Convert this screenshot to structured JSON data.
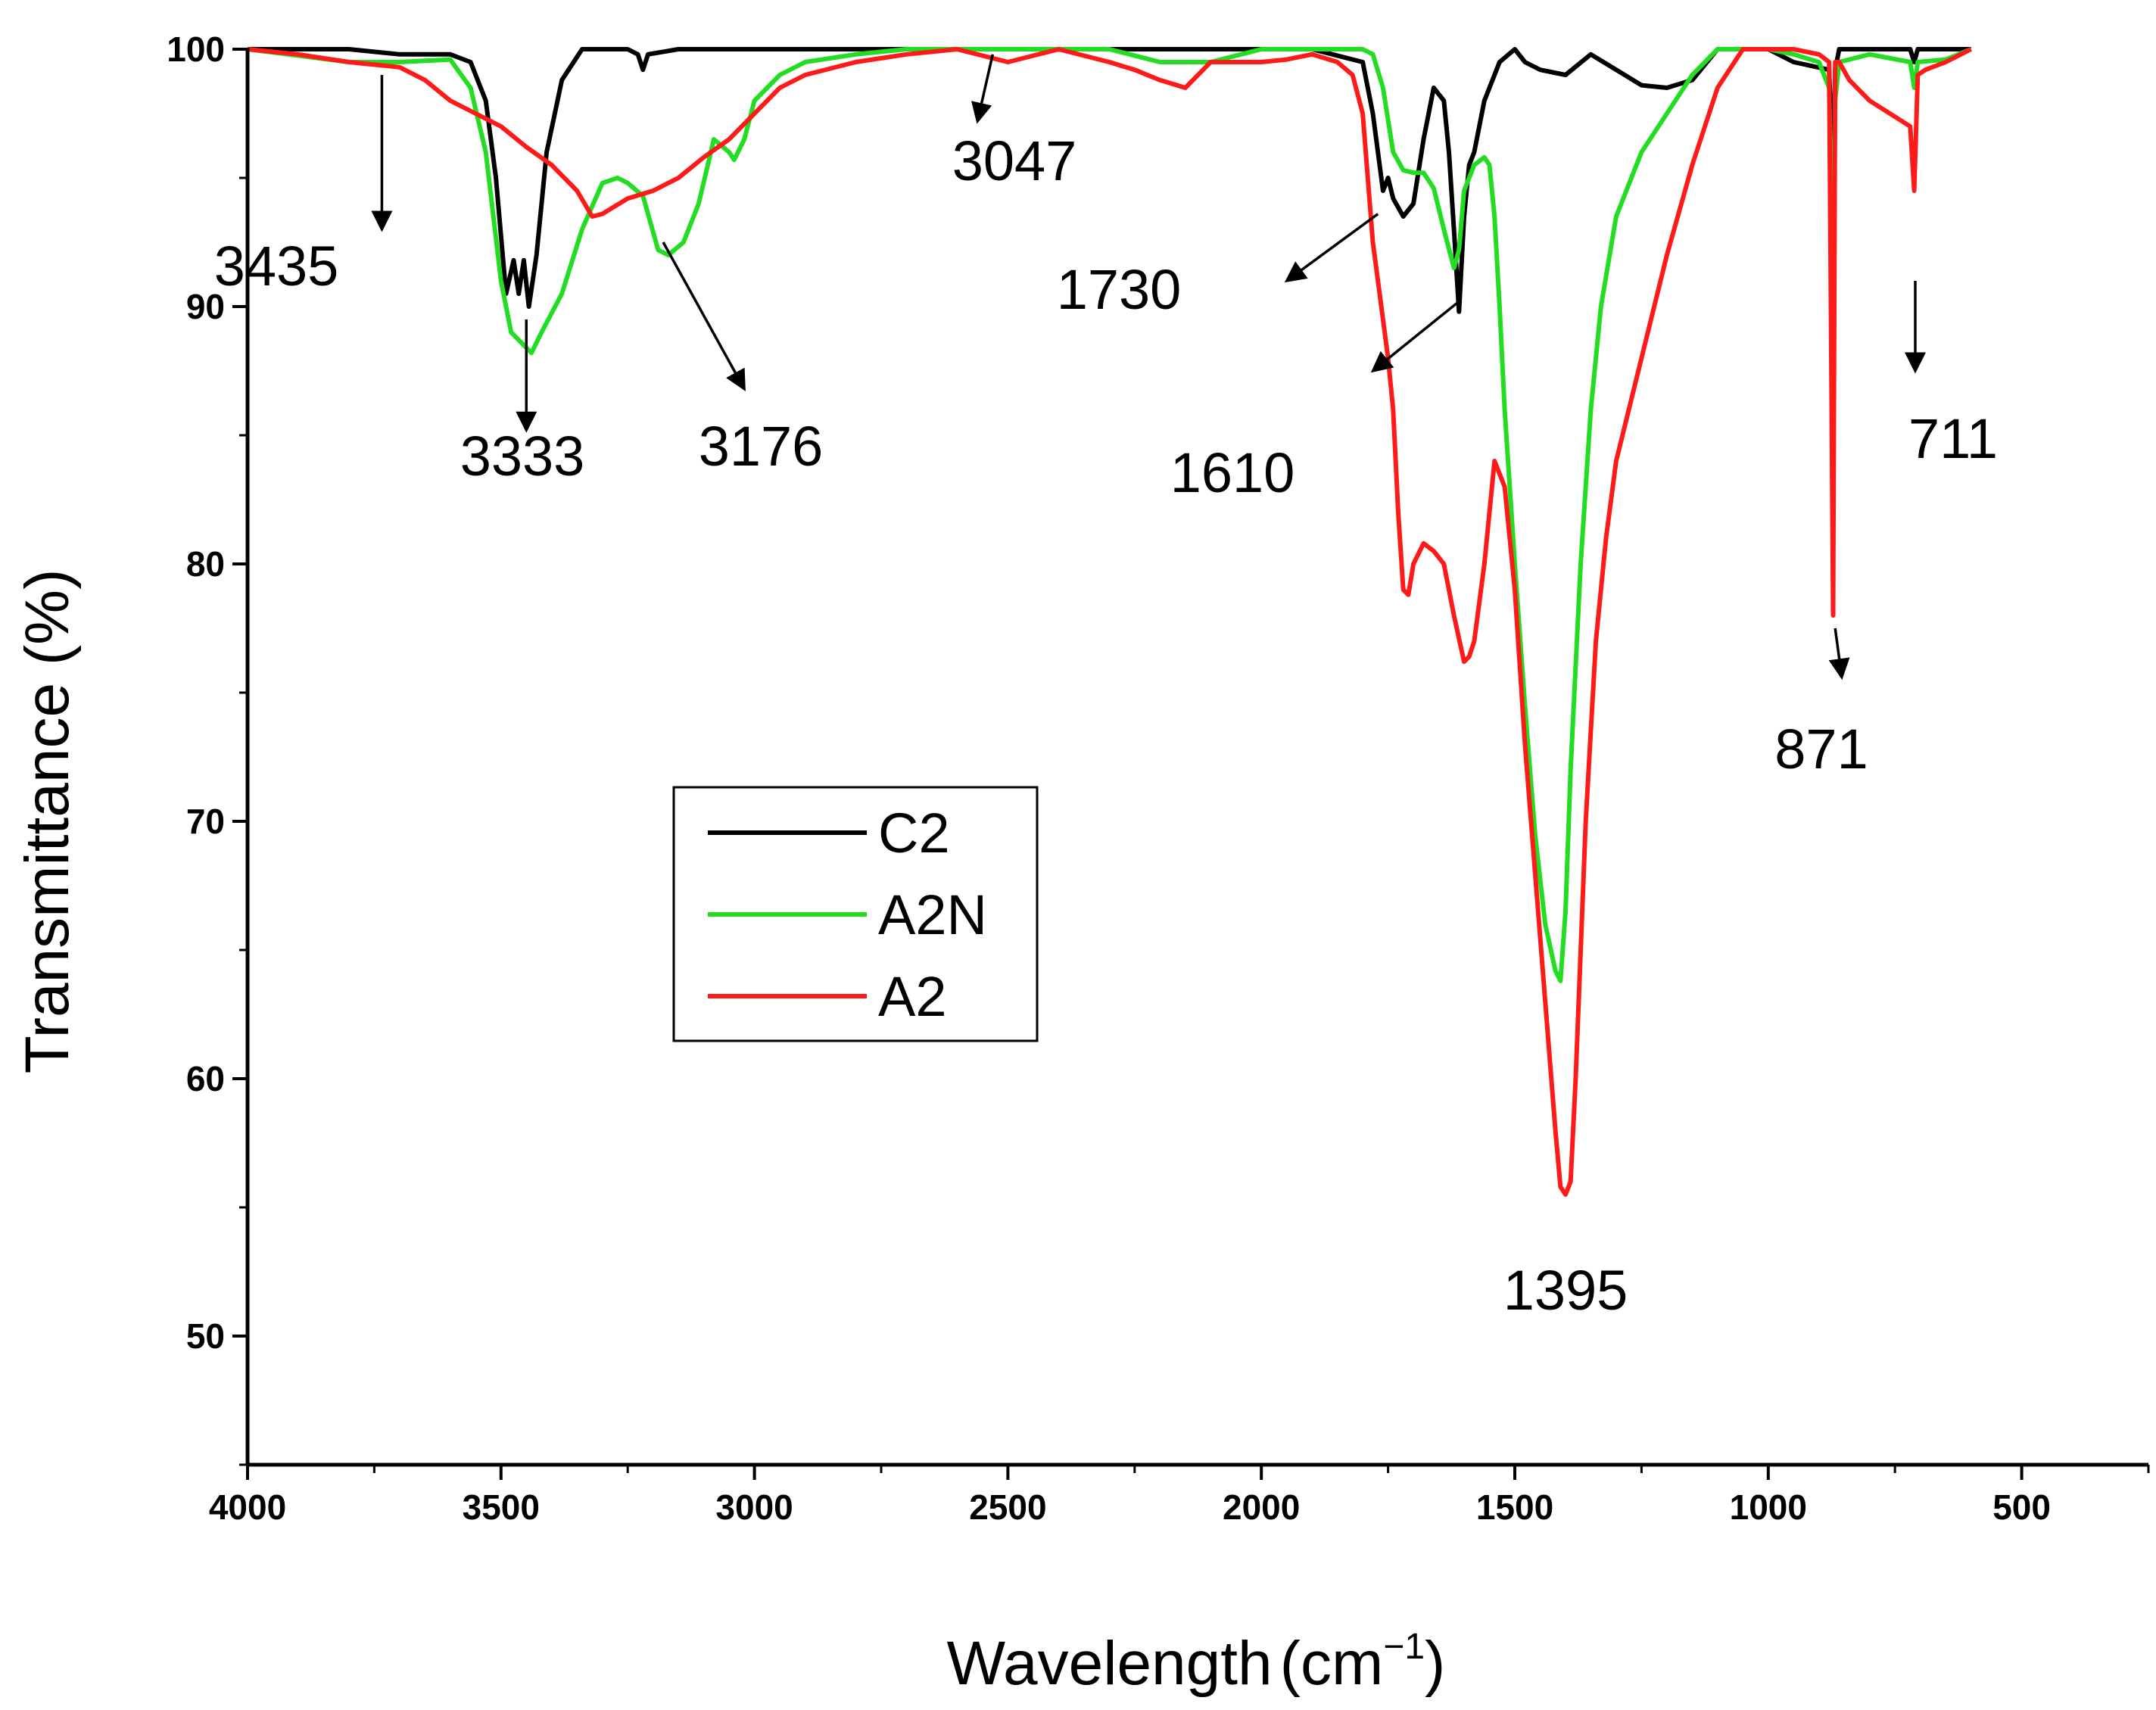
{
  "chart_data": {
    "type": "line",
    "xlabel": "Wavelength",
    "xunit": "cm",
    "xunit_exp": "−1",
    "ylabel": "Transmittance (%)",
    "xlim": [
      4000,
      250
    ],
    "ylim": [
      45,
      100
    ],
    "x_ticks": [
      4000,
      3500,
      3000,
      2500,
      2000,
      1500,
      1000,
      500
    ],
    "x_tick_labels": [
      "4000",
      "3500",
      "3000",
      "2500",
      "2000",
      "1500",
      "1000",
      "500"
    ],
    "y_ticks": [
      50,
      60,
      70,
      80,
      90,
      100
    ],
    "y_tick_labels": [
      "50",
      "60",
      "70",
      "80",
      "90",
      "100"
    ],
    "grid": false,
    "legend_position": "center-left",
    "series": [
      {
        "name": "C2",
        "color": "#000000",
        "x": [
          4000,
          3800,
          3700,
          3600,
          3560,
          3530,
          3510,
          3490,
          3475,
          3465,
          3455,
          3445,
          3430,
          3410,
          3380,
          3340,
          3300,
          3250,
          3230,
          3220,
          3210,
          3150,
          3000,
          2700,
          2400,
          2100,
          1900,
          1800,
          1780,
          1760,
          1750,
          1740,
          1720,
          1700,
          1680,
          1660,
          1640,
          1630,
          1620,
          1610,
          1600,
          1590,
          1580,
          1560,
          1530,
          1500,
          1480,
          1450,
          1400,
          1350,
          1300,
          1250,
          1200,
          1150,
          1100,
          1000,
          950,
          880,
          872,
          868,
          860,
          800,
          720,
          712,
          705,
          600
        ],
        "y": [
          100,
          100,
          99.8,
          99.8,
          99.5,
          98,
          95,
          90.5,
          91.8,
          90.5,
          91.8,
          90,
          92,
          96,
          98.8,
          100,
          100,
          100,
          99.8,
          99.2,
          99.8,
          100,
          100,
          100,
          100,
          100,
          100,
          99.5,
          97.5,
          94.5,
          95,
          94.2,
          93.5,
          94,
          96.5,
          98.5,
          98,
          96,
          93,
          89.8,
          93.5,
          95.5,
          96,
          98,
          99.5,
          100,
          99.5,
          99.2,
          99,
          99.8,
          99.2,
          98.6,
          98.5,
          98.8,
          100,
          100,
          99.5,
          99.2,
          95,
          99.2,
          100,
          100,
          100,
          99.5,
          100,
          100
        ]
      },
      {
        "name": "A2N",
        "color": "#22dd22",
        "x": [
          4000,
          3800,
          3700,
          3600,
          3560,
          3530,
          3500,
          3480,
          3460,
          3440,
          3420,
          3380,
          3340,
          3300,
          3270,
          3250,
          3220,
          3190,
          3170,
          3140,
          3110,
          3080,
          3050,
          3040,
          3020,
          3000,
          2950,
          2900,
          2800,
          2700,
          2500,
          2300,
          2200,
          2100,
          2000,
          1900,
          1800,
          1780,
          1760,
          1740,
          1720,
          1700,
          1680,
          1660,
          1640,
          1620,
          1610,
          1600,
          1580,
          1560,
          1550,
          1540,
          1530,
          1520,
          1500,
          1480,
          1460,
          1440,
          1420,
          1410,
          1400,
          1390,
          1370,
          1350,
          1330,
          1300,
          1250,
          1200,
          1150,
          1100,
          1050,
          1000,
          950,
          900,
          880,
          872,
          868,
          860,
          800,
          720,
          712,
          705,
          650,
          600
        ],
        "y": [
          100,
          99.5,
          99.5,
          99.6,
          98.5,
          96,
          91,
          89,
          88.6,
          88.2,
          89,
          90.5,
          93,
          94.8,
          95,
          94.8,
          94.3,
          92.2,
          92,
          92.5,
          94,
          96.5,
          96,
          95.7,
          96.5,
          98,
          99,
          99.5,
          99.8,
          100,
          100,
          100,
          99.5,
          99.5,
          100,
          100,
          100,
          99.8,
          98.5,
          96,
          95.3,
          95.2,
          95.2,
          94.6,
          93,
          91.5,
          92.2,
          94.5,
          95.5,
          95.8,
          95.5,
          93.5,
          90,
          86,
          80,
          74.5,
          69.5,
          66,
          64.2,
          63.8,
          66.5,
          72,
          80,
          86,
          90,
          93.5,
          96,
          97.5,
          99,
          100,
          100,
          100,
          99.8,
          99.5,
          98.5,
          90.5,
          98,
          99.5,
          99.8,
          99.5,
          98.5,
          99.5,
          99.6,
          100
        ]
      },
      {
        "name": "A2",
        "color": "#ff1a1a",
        "x": [
          4000,
          3900,
          3800,
          3700,
          3650,
          3600,
          3550,
          3500,
          3450,
          3400,
          3350,
          3320,
          3300,
          3250,
          3200,
          3150,
          3100,
          3050,
          3000,
          2950,
          2900,
          2800,
          2700,
          2600,
          2500,
          2400,
          2300,
          2250,
          2200,
          2150,
          2100,
          2050,
          2000,
          1950,
          1900,
          1850,
          1820,
          1800,
          1790,
          1780,
          1770,
          1760,
          1750,
          1740,
          1730,
          1720,
          1710,
          1700,
          1680,
          1660,
          1640,
          1620,
          1600,
          1590,
          1580,
          1560,
          1540,
          1520,
          1500,
          1480,
          1460,
          1440,
          1420,
          1410,
          1400,
          1390,
          1380,
          1360,
          1340,
          1320,
          1300,
          1250,
          1200,
          1150,
          1100,
          1050,
          1000,
          950,
          900,
          880,
          872,
          868,
          860,
          840,
          800,
          760,
          720,
          712,
          705,
          690,
          650,
          600
        ],
        "y": [
          100,
          99.8,
          99.5,
          99.3,
          98.8,
          98,
          97.5,
          97,
          96.2,
          95.5,
          94.5,
          93.5,
          93.6,
          94.2,
          94.5,
          95,
          95.8,
          96.5,
          97.5,
          98.5,
          99,
          99.5,
          99.8,
          100,
          99.5,
          100,
          99.5,
          99.2,
          98.8,
          98.5,
          99.5,
          99.5,
          99.5,
          99.6,
          99.8,
          99.5,
          99,
          97.5,
          95,
          92.5,
          91,
          89.5,
          88,
          86,
          82,
          79,
          78.8,
          80,
          80.8,
          80.5,
          80,
          78,
          76.2,
          76.4,
          77,
          80,
          84,
          83,
          79,
          73,
          68,
          63,
          58,
          55.8,
          55.5,
          56,
          60,
          70,
          77,
          81,
          84,
          88,
          92,
          95.5,
          98.5,
          100,
          100,
          100,
          99.8,
          99.5,
          78,
          99.5,
          99.5,
          98.8,
          98,
          97.5,
          97,
          94.5,
          99,
          99.2,
          99.5,
          100
        ]
      }
    ],
    "annotations": [
      {
        "text": "3435",
        "x": 3735,
        "y": 92.5
      },
      {
        "text": "3333",
        "x": 3450,
        "y": 84.5
      },
      {
        "text": "3176",
        "x": 3200,
        "y": 85.2
      },
      {
        "text": "3047",
        "x": 2530,
        "y": 97.6
      },
      {
        "text": "1730",
        "x": 1790,
        "y": 92.3
      },
      {
        "text": "1610",
        "x": 1610,
        "y": 84.2
      },
      {
        "text": "1395",
        "x": 1380,
        "y": 53.4
      },
      {
        "text": "871",
        "x": 862,
        "y": 76
      },
      {
        "text": "711",
        "x": 705,
        "y": 94.5
      }
    ]
  }
}
